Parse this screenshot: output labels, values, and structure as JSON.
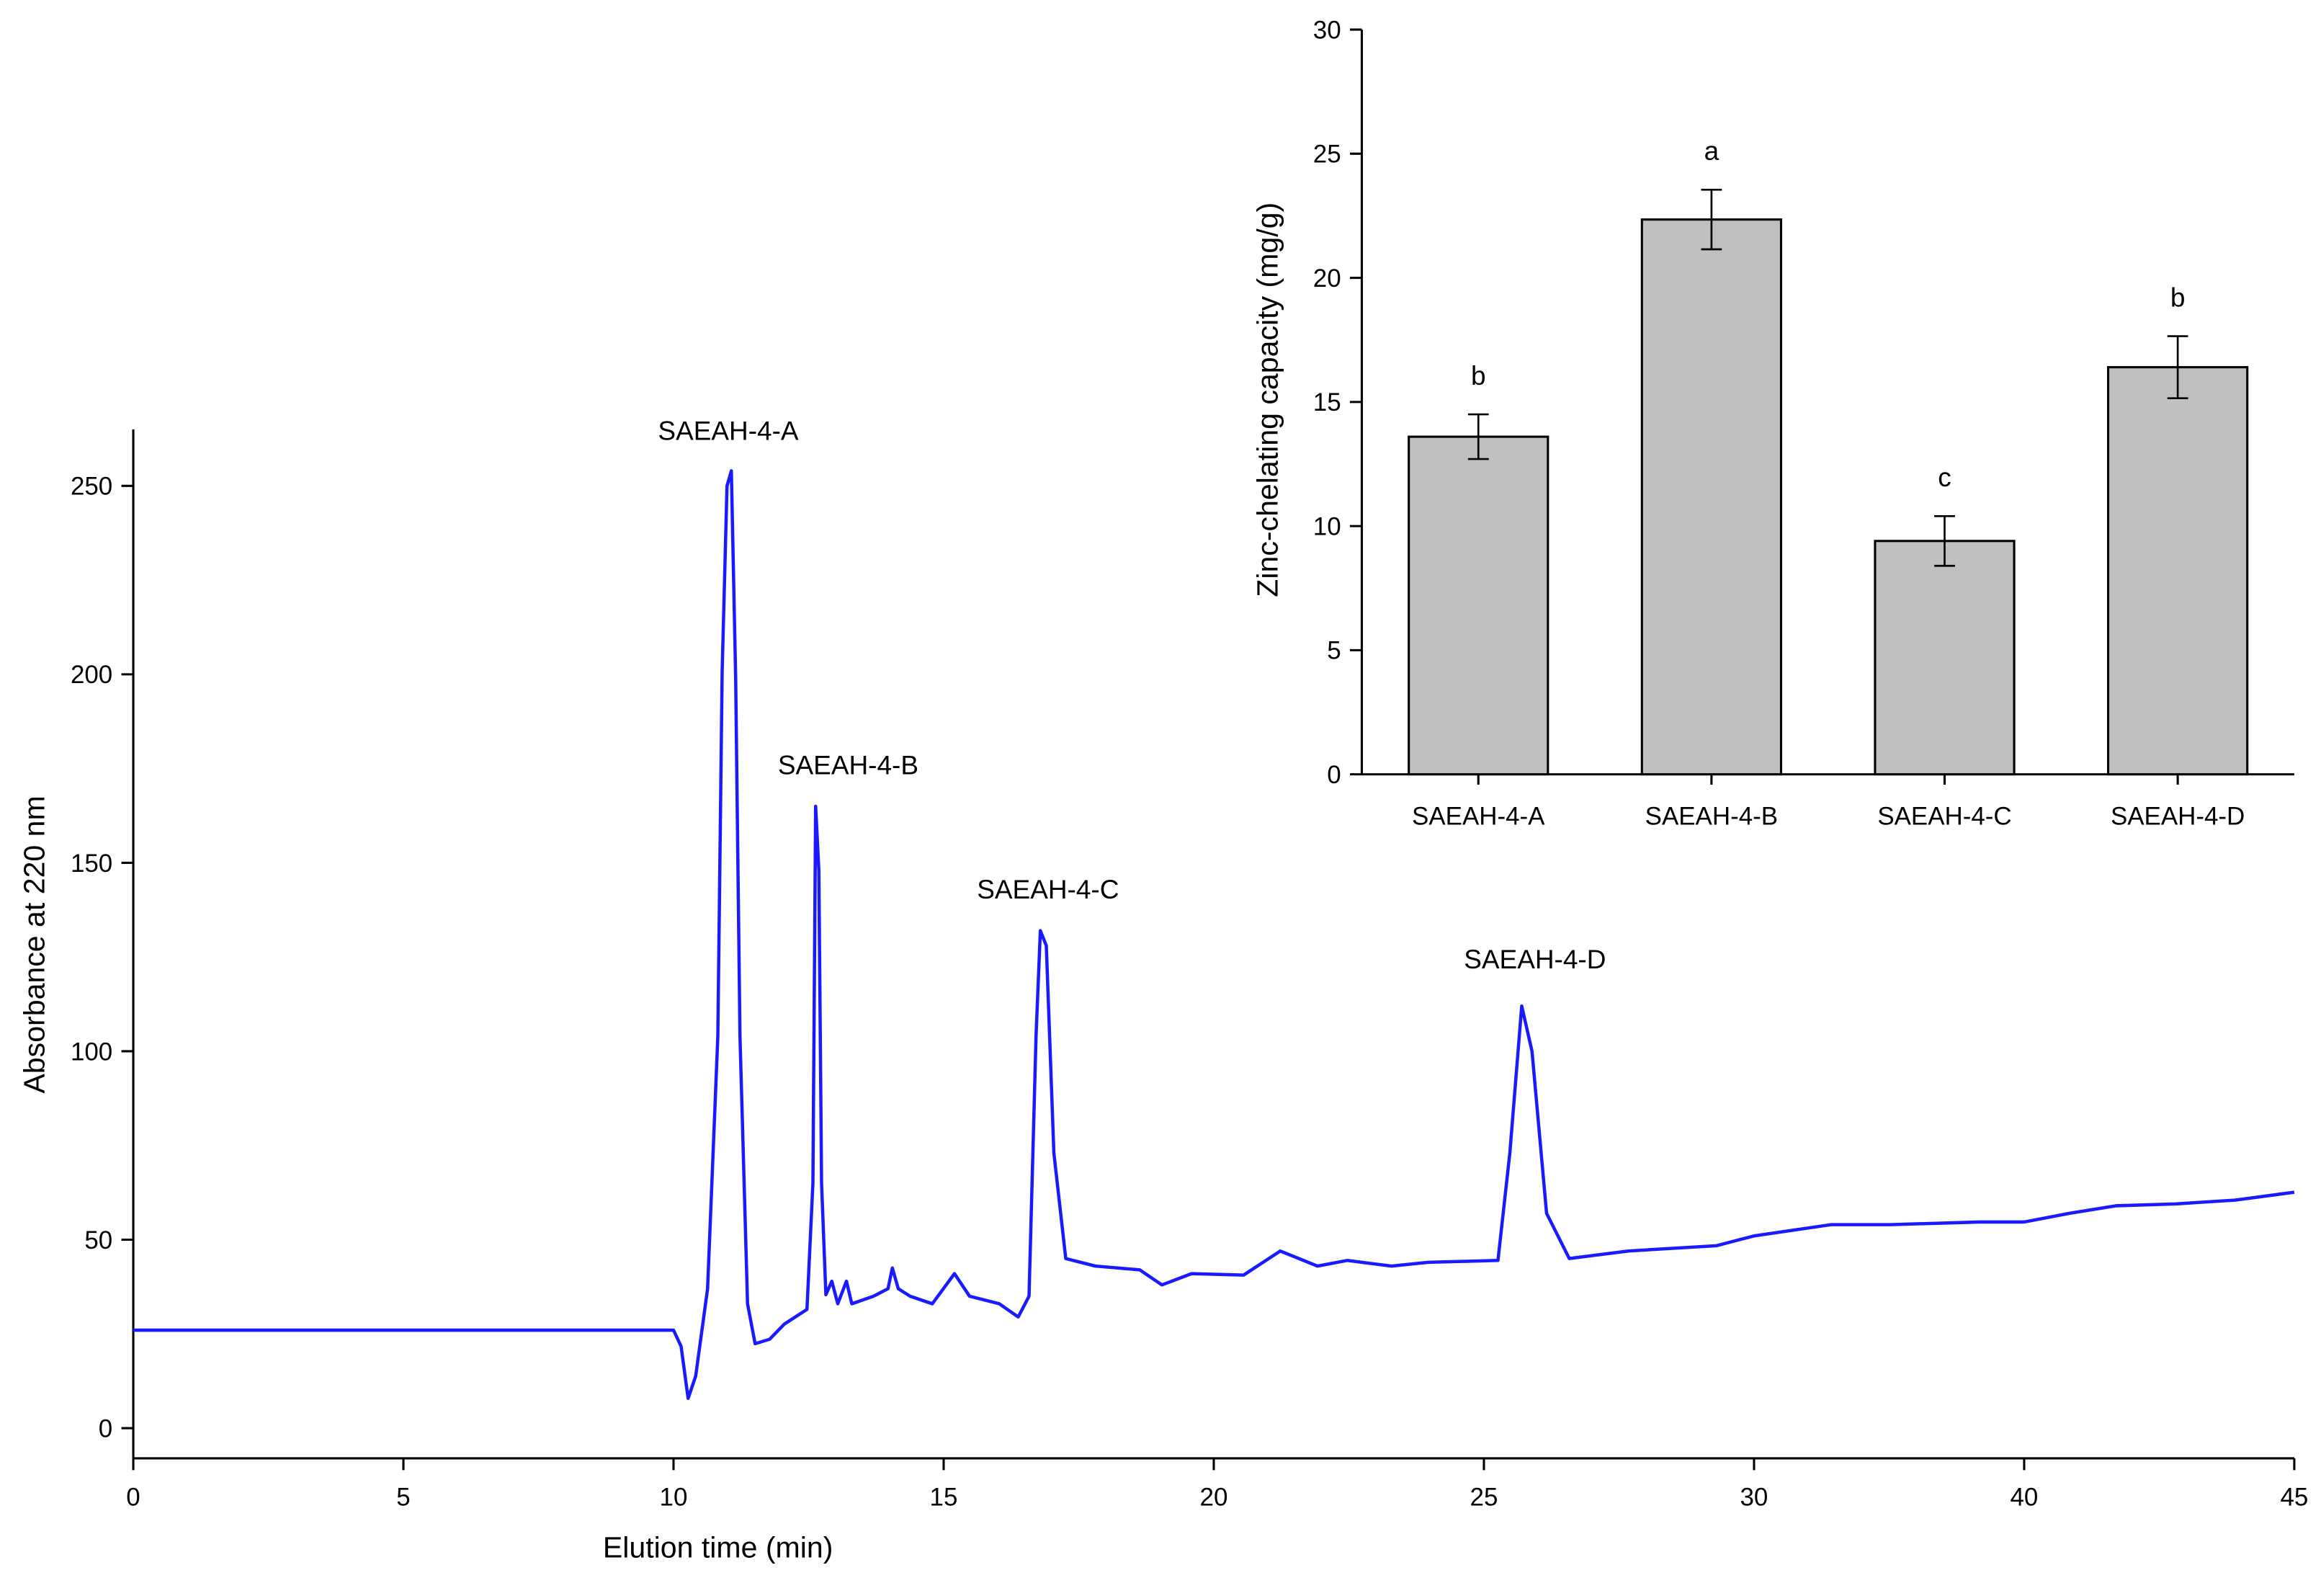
{
  "chart_data": [
    {
      "type": "line",
      "xlabel": "Elution time (min)",
      "ylabel": "Absorbance at 220 nm",
      "color": "#1a1aff",
      "annotations": [
        "SAEAH-4-A",
        "SAEAH-4-B",
        "SAEAH-4-C",
        "SAEAH-4-D"
      ],
      "x": [
        0,
        10.0,
        10.14,
        10.27,
        10.41,
        10.63,
        10.82,
        10.9,
        10.99,
        11.07,
        11.15,
        11.23,
        11.37,
        11.51,
        11.78,
        12.05,
        12.47,
        12.58,
        12.63,
        12.69,
        12.74,
        12.82,
        12.93,
        13.04,
        13.2,
        13.3,
        13.7,
        13.97,
        14.05,
        14.16,
        14.38,
        14.79,
        15.2,
        15.48,
        16.03,
        16.38,
        16.58,
        16.71,
        16.79,
        16.9,
        17.04,
        17.26,
        17.81,
        18.63,
        19.04,
        19.59,
        20.55,
        21.23,
        21.92,
        22.47,
        23.29,
        23.97,
        25.26,
        25.48,
        25.7,
        25.89,
        26.16,
        26.58,
        27.67,
        29.3,
        30,
        32.86,
        35.05,
        38.35,
        40,
        40.84,
        41.7,
        42.8,
        43.9,
        45
      ],
      "values": [
        26,
        26,
        21.7,
        7.9,
        13.8,
        37,
        104,
        200.8,
        250,
        254,
        199,
        104,
        33,
        22.4,
        23.6,
        27.6,
        31.5,
        65,
        165,
        148,
        65,
        35.4,
        39,
        33,
        39,
        33,
        35,
        37,
        42.5,
        37,
        35,
        33,
        41,
        35,
        33,
        29.5,
        35,
        104,
        132,
        128,
        73,
        45,
        43,
        42,
        38,
        41,
        40.6,
        47,
        43,
        44.5,
        43,
        44,
        44.5,
        73,
        112,
        100,
        57,
        45,
        47,
        48.4,
        51,
        54,
        54,
        54.7,
        54.7,
        57,
        59,
        59.5,
        60.5,
        62.6
      ],
      "xlim": [
        0,
        45
      ],
      "xticks": [
        0,
        5,
        10,
        15,
        20,
        25,
        30,
        40,
        45
      ],
      "ylim": [
        -8,
        265
      ],
      "yticks": [
        0,
        50,
        100,
        150,
        200,
        250
      ]
    },
    {
      "type": "bar",
      "ylabel": "Zinc-chelating capacity (mg/g)",
      "categories": [
        "SAEAH-4-A",
        "SAEAH-4-B",
        "SAEAH-4-C",
        "SAEAH-4-D"
      ],
      "values": [
        13.6,
        22.35,
        9.4,
        16.4
      ],
      "errors": [
        0.9,
        1.2,
        1.0,
        1.25
      ],
      "letters": [
        "b",
        "a",
        "c",
        "b"
      ],
      "color": "#c0c0c0",
      "ylim": [
        0,
        30
      ],
      "yticks": [
        0,
        5,
        10,
        15,
        20,
        25,
        30
      ]
    }
  ]
}
